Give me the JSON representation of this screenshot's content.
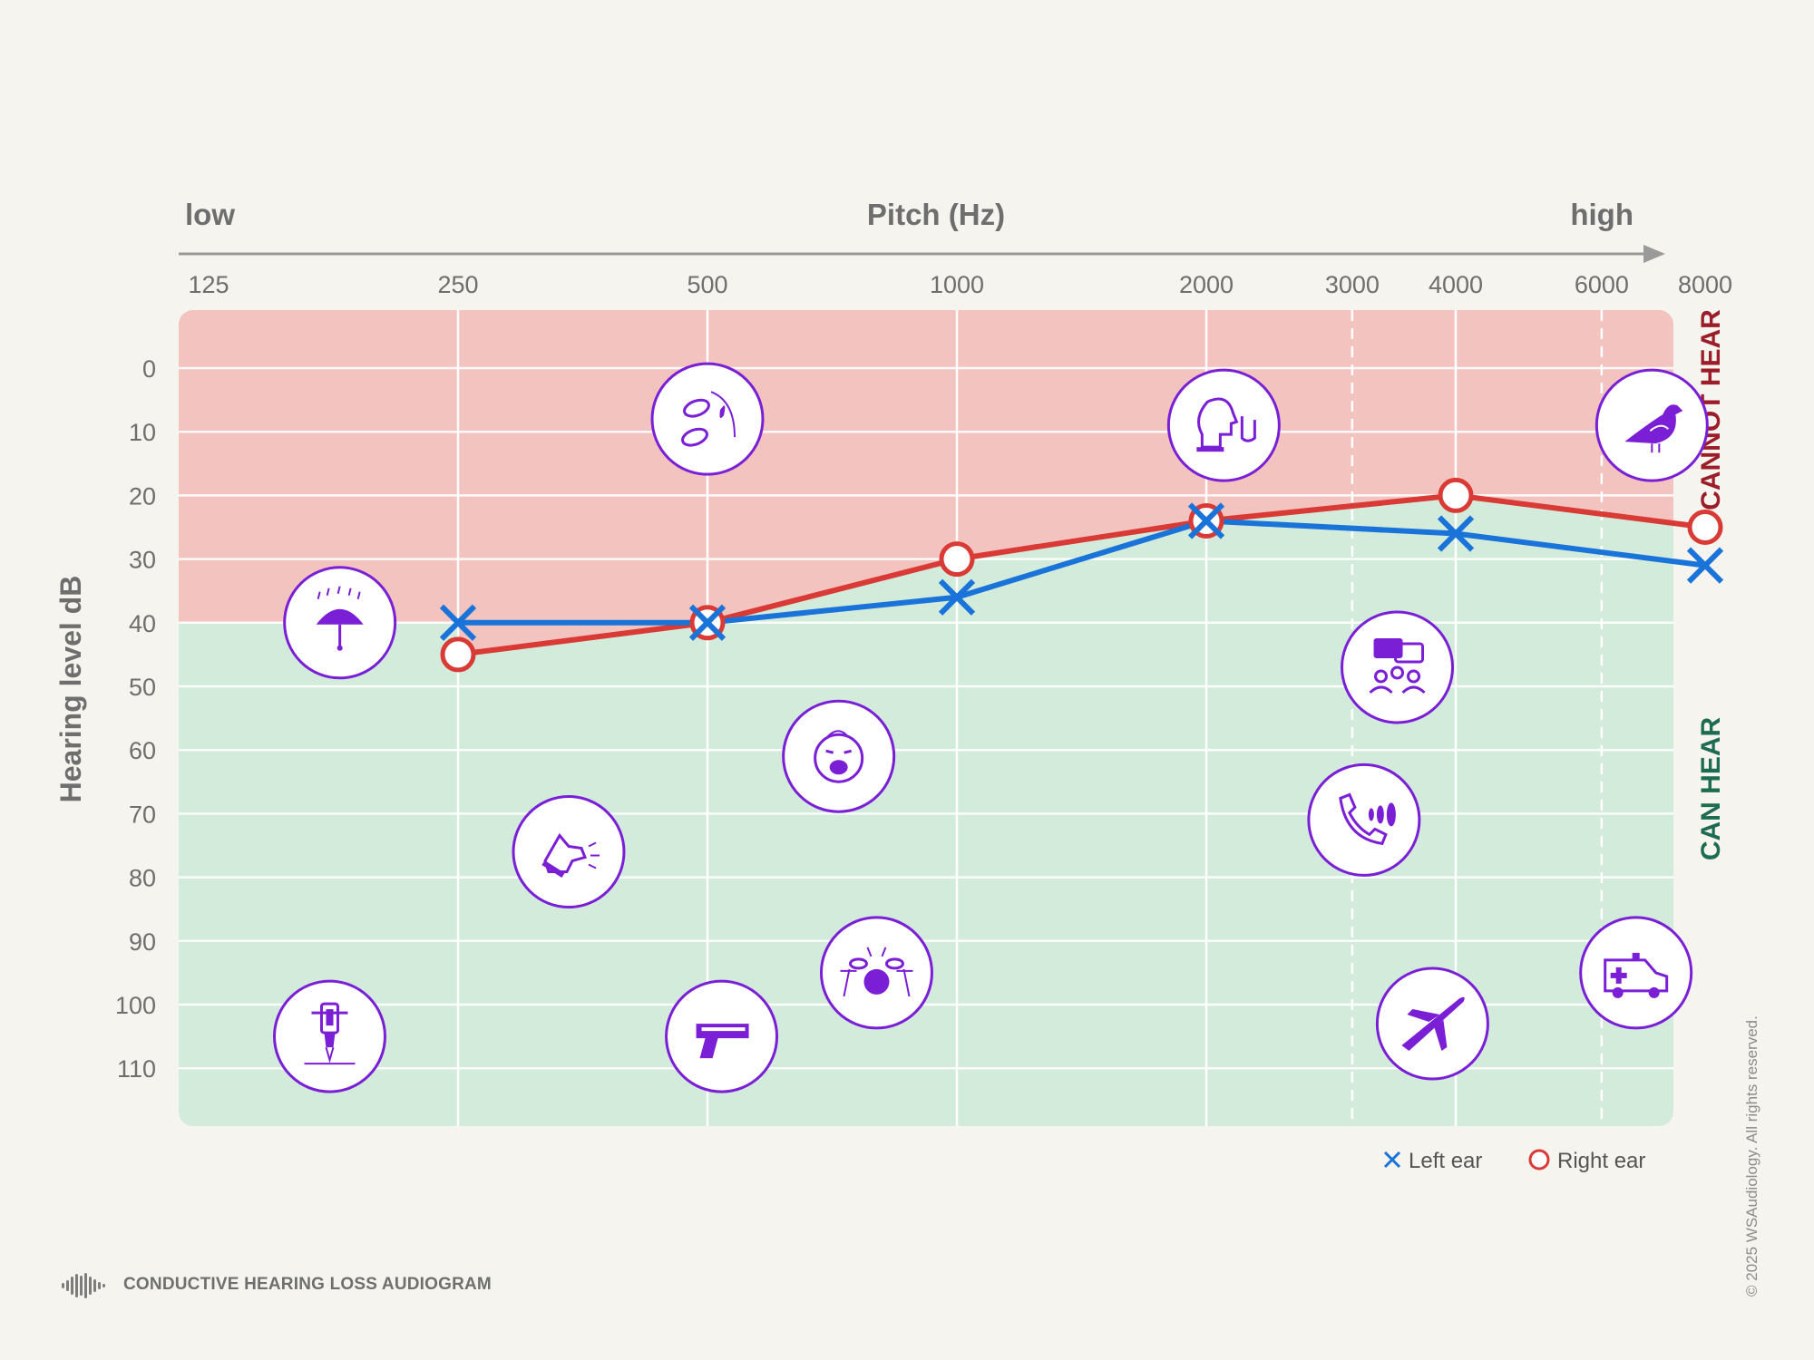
{
  "chart_data": {
    "type": "line",
    "title": "",
    "top_axis": {
      "left_label": "low",
      "center_label": "Pitch (Hz)",
      "right_label": "high"
    },
    "x_ticks": [
      "125",
      "250",
      "500",
      "1000",
      "2000",
      "3000",
      "4000",
      "6000",
      "8000"
    ],
    "x_scale": "log2",
    "ylabel": "Hearing level dB",
    "y_ticks": [
      "0",
      "10",
      "20",
      "30",
      "40",
      "50",
      "60",
      "70",
      "80",
      "90",
      "100",
      "110"
    ],
    "ylim": [
      -10,
      120
    ],
    "y_inverted": true,
    "series": [
      {
        "name": "Left ear",
        "marker": "x",
        "color": "#1a73d9",
        "x": [
          250,
          500,
          1000,
          2000,
          4000,
          8000
        ],
        "y": [
          40,
          40,
          36,
          24,
          26,
          31
        ]
      },
      {
        "name": "Right ear",
        "marker": "o",
        "color": "#d93a35",
        "x": [
          250,
          500,
          1000,
          2000,
          4000,
          8000
        ],
        "y": [
          45,
          40,
          30,
          24,
          20,
          25
        ]
      }
    ],
    "zones": [
      {
        "label": "CANNOT HEAR",
        "color": "#f3c4bf",
        "label_color": "#9b1d2a"
      },
      {
        "label": "CAN HEAR",
        "color": "#d2ebdb",
        "label_color": "#1c6b52"
      }
    ],
    "sound_icons": [
      {
        "name": "rain-umbrella-icon",
        "x": 180,
        "y": 40
      },
      {
        "name": "jackhammer-icon",
        "x": 175,
        "y": 105
      },
      {
        "name": "dog-barking-icon",
        "x": 340,
        "y": 76
      },
      {
        "name": "leaves-rustling-icon",
        "x": 500,
        "y": 8
      },
      {
        "name": "handgun-icon",
        "x": 520,
        "y": 105
      },
      {
        "name": "crying-baby-icon",
        "x": 720,
        "y": 61
      },
      {
        "name": "drum-kit-icon",
        "x": 800,
        "y": 95
      },
      {
        "name": "whispering-icon",
        "x": 2100,
        "y": 9
      },
      {
        "name": "group-conversation-icon",
        "x": 3400,
        "y": 47
      },
      {
        "name": "phone-ringing-icon",
        "x": 3100,
        "y": 71
      },
      {
        "name": "airplane-icon",
        "x": 3750,
        "y": 103
      },
      {
        "name": "ambulance-siren-icon",
        "x": 6600,
        "y": 95
      },
      {
        "name": "bird-singing-icon",
        "x": 6900,
        "y": 9
      }
    ],
    "icon_color": "#7a1fd6"
  },
  "footer": {
    "title": "CONDUCTIVE HEARING LOSS AUDIOGRAM",
    "copyright": "© 2025 WSAudiology. All rights reserved."
  }
}
